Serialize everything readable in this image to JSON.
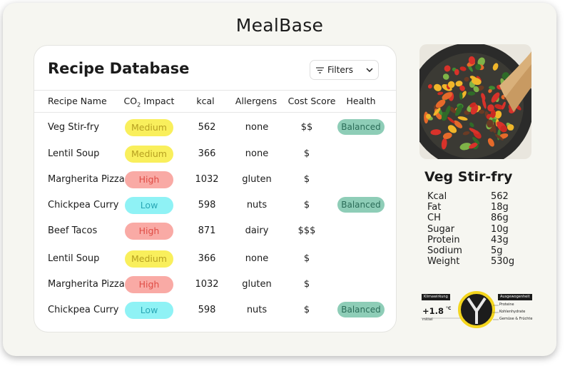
{
  "app": {
    "title": "MealBase"
  },
  "database": {
    "title": "Recipe Database",
    "filters_label": "Filters",
    "columns": {
      "name": "Recipe Name",
      "co2": "CO",
      "co2_sub": "2",
      "co2_suffix": " Impact",
      "kcal": "kcal",
      "allergens": "Allergens",
      "cost": "Cost Score",
      "health": "Health"
    },
    "rows": [
      {
        "name": "Veg Stir-fry",
        "impact": "Medium",
        "kcal": "562",
        "allergens": "none",
        "cost": "$$",
        "health": "Balanced"
      },
      {
        "name": "Lentil Soup",
        "impact": "Medium",
        "kcal": "366",
        "allergens": "none",
        "cost": "$",
        "health": ""
      },
      {
        "name": "Margherita Pizza",
        "impact": "High",
        "kcal": "1032",
        "allergens": "gluten",
        "cost": "$",
        "health": ""
      },
      {
        "name": "Chickpea Curry",
        "impact": "Low",
        "kcal": "598",
        "allergens": "nuts",
        "cost": "$",
        "health": "Balanced"
      },
      {
        "name": "Beef Tacos",
        "impact": "High",
        "kcal": "871",
        "allergens": "dairy",
        "cost": "$$$",
        "health": ""
      },
      {
        "name": "Lentil Soup",
        "impact": "Medium",
        "kcal": "366",
        "allergens": "none",
        "cost": "$",
        "health": ""
      },
      {
        "name": "Margherita Pizza",
        "impact": "High",
        "kcal": "1032",
        "allergens": "gluten",
        "cost": "$",
        "health": ""
      },
      {
        "name": "Chickpea Curry",
        "impact": "Low",
        "kcal": "598",
        "allergens": "nuts",
        "cost": "$",
        "health": "Balanced"
      }
    ]
  },
  "detail": {
    "name": "Veg Stir-fry",
    "nutrition": [
      {
        "label": "Kcal",
        "value": "562"
      },
      {
        "label": "Fat",
        "value": "18g"
      },
      {
        "label": "CH",
        "value": "86g"
      },
      {
        "label": "Sugar",
        "value": "10g"
      },
      {
        "label": "Protein",
        "value": "43g"
      },
      {
        "label": "Sodium",
        "value": "5g"
      },
      {
        "label": "Weight",
        "value": "530g"
      }
    ]
  },
  "badge": {
    "climate_label": "Klimawirkung",
    "climate_value": "+1.8",
    "climate_unit": "°C",
    "climate_sub": "mittel",
    "balance_label": "Ausgewogenheit",
    "balance_items": [
      "Proteine",
      "Kohlenhydrate",
      "Gemüse & Früchte"
    ]
  },
  "colors": {
    "medium": "#f9ef5c",
    "high": "#f9aaa5",
    "low": "#8ff2f5",
    "balanced": "#8ecdb7",
    "badge_ring": "#f3d51e"
  }
}
